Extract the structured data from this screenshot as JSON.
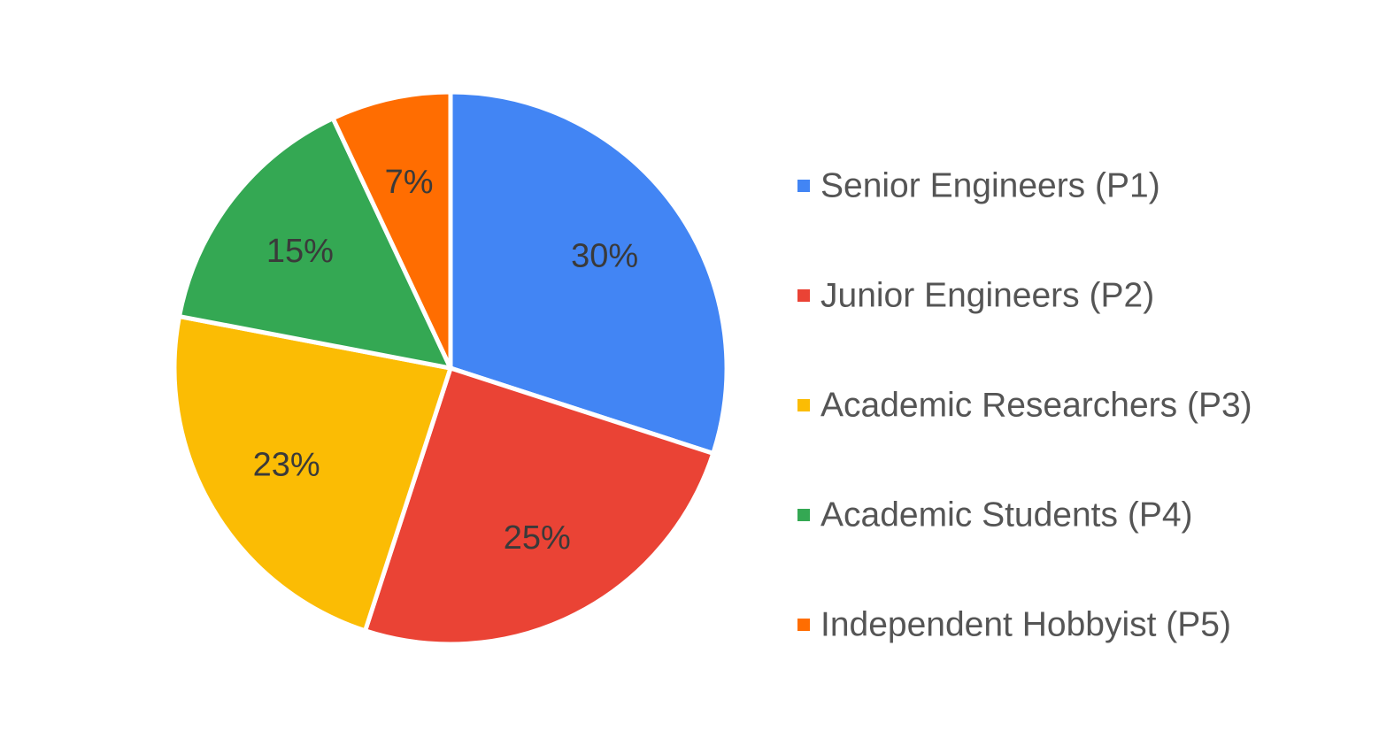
{
  "chart_data": {
    "type": "pie",
    "title": "",
    "legend_position": "right",
    "slices": [
      {
        "name": "Senior Engineers (P1)",
        "value": 30,
        "label": "30%",
        "color": "#4285F4"
      },
      {
        "name": "Junior Engineers (P2)",
        "value": 25,
        "label": "25%",
        "color": "#EA4335"
      },
      {
        "name": "Academic Researchers (P3)",
        "value": 23,
        "label": "23%",
        "color": "#FBBC04"
      },
      {
        "name": "Academic Students (P4)",
        "value": 15,
        "label": "15%",
        "color": "#34A853"
      },
      {
        "name": "Independent Hobbyist (P5)",
        "value": 7,
        "label": "7%",
        "color": "#FF6D01"
      }
    ]
  }
}
